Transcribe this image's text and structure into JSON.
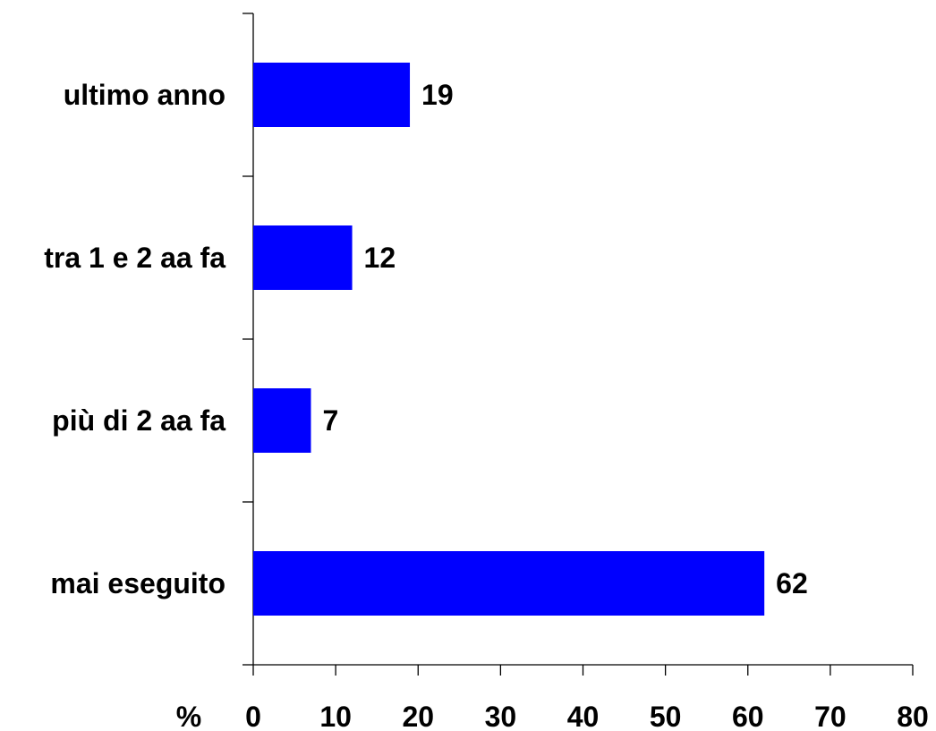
{
  "chart_data": {
    "type": "bar",
    "orientation": "horizontal",
    "categories": [
      "ultimo anno",
      "tra 1 e 2 aa fa",
      "più di 2 aa fa",
      "mai eseguito"
    ],
    "values": [
      19,
      12,
      7,
      62
    ],
    "value_labels": [
      "19",
      "12",
      "7",
      "62"
    ],
    "xlabel": "%",
    "xlim": [
      0,
      80
    ],
    "xticks": [
      0,
      10,
      20,
      30,
      40,
      50,
      60,
      70,
      80
    ],
    "xtick_labels": [
      "0",
      "10",
      "20",
      "30",
      "40",
      "50",
      "60",
      "70",
      "80"
    ],
    "grid": false,
    "legend": "none",
    "colors": {
      "bar": "#0000FF",
      "axis": "#000000",
      "text": "#000000"
    }
  }
}
